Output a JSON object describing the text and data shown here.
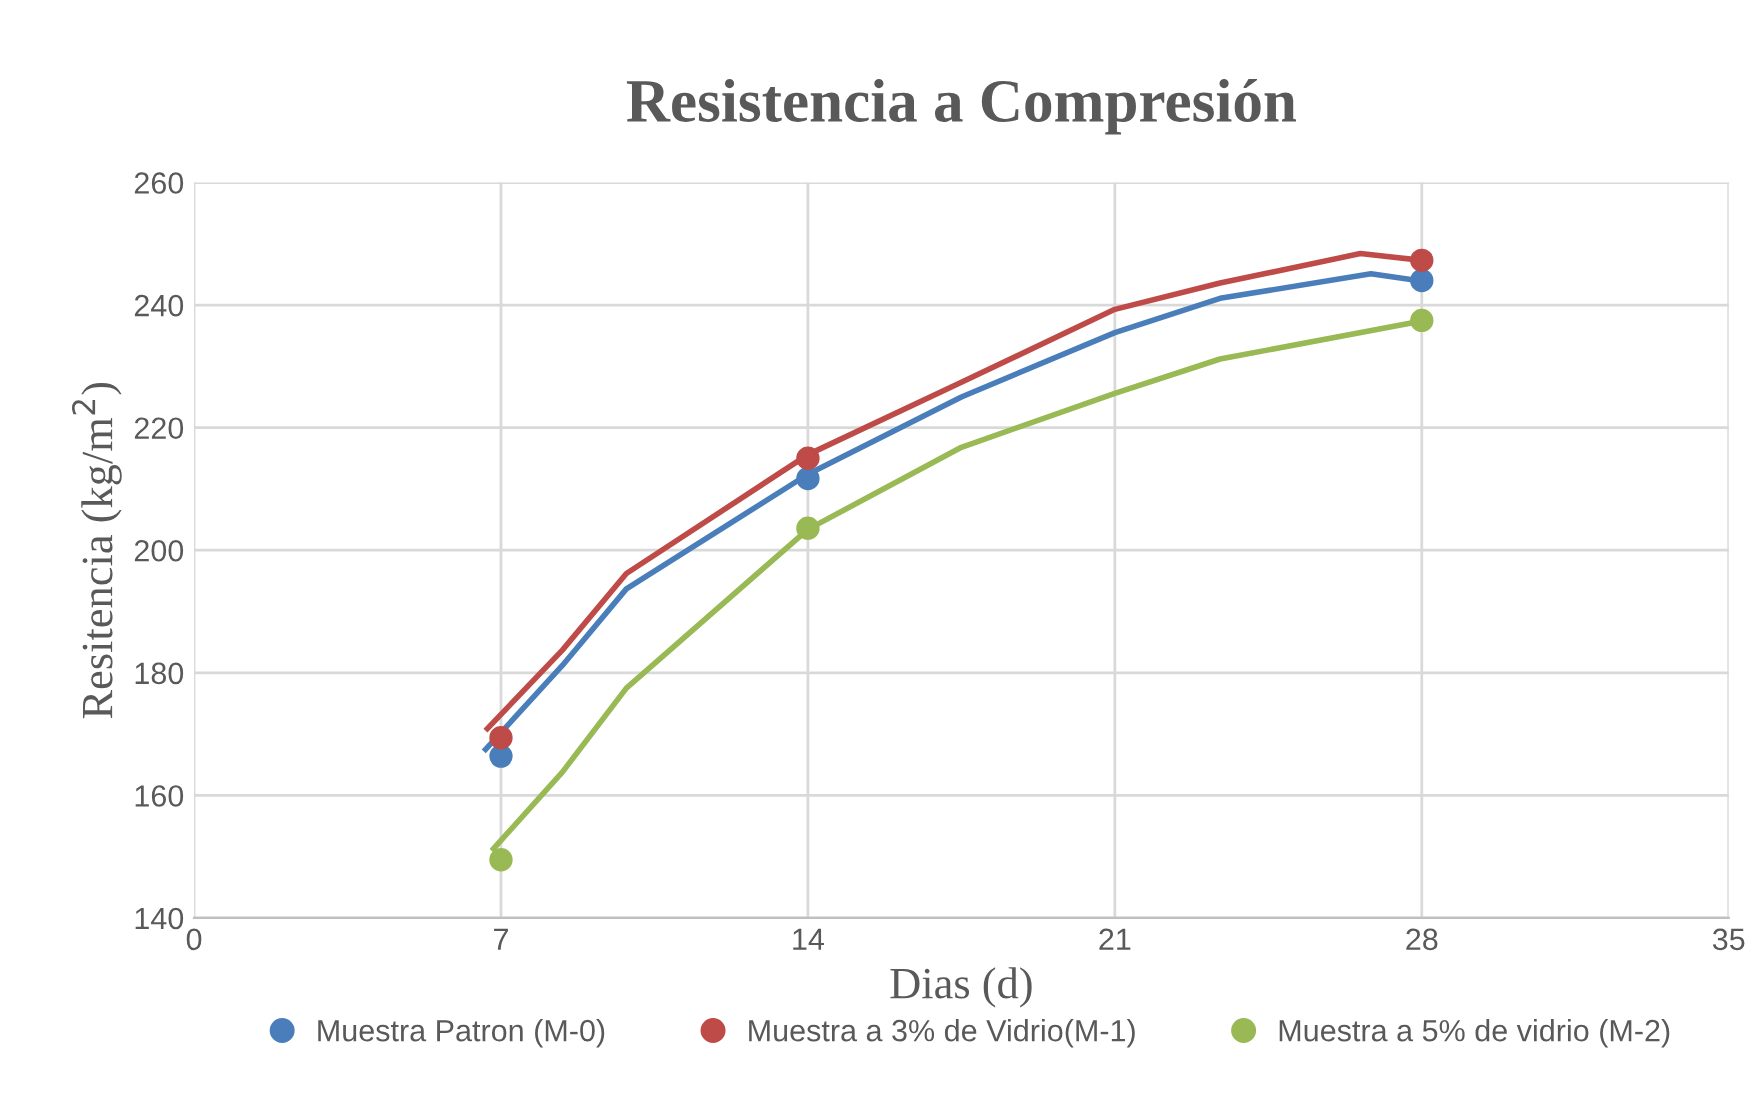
{
  "chart_data": {
    "type": "scatter",
    "title": "Resistencia a Compresión",
    "xlabel": "Dias (d)",
    "ylabel": "Resitencia (kg/m$^{2}$)",
    "x": [
      7,
      14,
      28
    ],
    "series": [
      {
        "name": "Muestra Patron (M-0)",
        "color": "#4a7ebb",
        "values": [
          166.4,
          211.7,
          244
        ]
      },
      {
        "name": "Muestra a 3% de Vidrio(M-1)",
        "color": "#be4b48",
        "values": [
          169.4,
          215,
          247.3
        ]
      },
      {
        "name": "Muestra a 5% de vidrio (M-2)",
        "color": "#98b954",
        "values": [
          149.5,
          203.6,
          237.5
        ]
      },
      {
        "type": "line",
        "marker": "none",
        "color": "#4a7ebb",
        "x": [
          6.65,
          8.4,
          9.86,
          14,
          17.5,
          21,
          23.4,
          26.84,
          28
        ],
        "values": [
          167.5,
          181.2,
          193.7,
          212.4,
          225,
          235.5,
          241.1,
          245.1,
          243.9
        ]
      },
      {
        "type": "line",
        "marker": "none",
        "color": "#be4b48",
        "x": [
          6.69,
          8.4,
          9.86,
          14,
          17.5,
          21,
          23.4,
          26.6,
          28
        ],
        "values": [
          170.9,
          183.7,
          196.2,
          215.6,
          227.4,
          239.3,
          243.6,
          248.4,
          247.3
        ]
      },
      {
        "type": "line",
        "marker": "none",
        "color": "#98b954",
        "x": [
          6.83,
          8.4,
          9.86,
          14,
          17.5,
          21,
          23.4,
          28
        ],
        "values": [
          151.3,
          163.8,
          177.5,
          203.4,
          216.8,
          225.6,
          231.2,
          237.4
        ]
      }
    ],
    "xlim": [
      0,
      35
    ],
    "xticks": [
      0,
      7,
      14,
      21,
      28,
      35
    ],
    "ylim": [
      140,
      260
    ],
    "yticks": [
      140,
      160,
      180,
      200,
      220,
      240,
      260
    ],
    "grid": true,
    "legend": "bottom",
    "marker": "circle",
    "line_style": "solid"
  }
}
